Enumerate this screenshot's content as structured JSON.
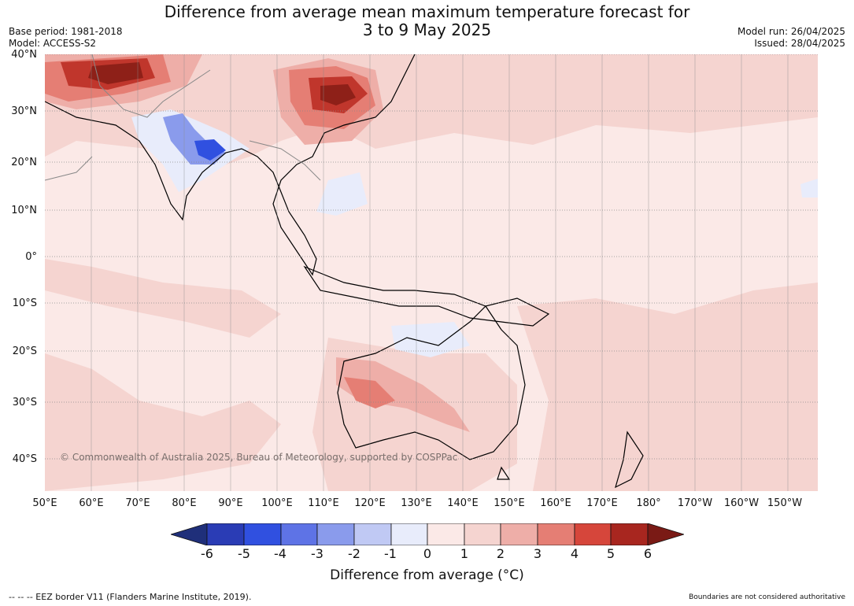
{
  "header": {
    "title_line1": "Difference from average mean maximum temperature forecast for",
    "title_line2": "3 to 9 May 2025",
    "base_period": "Base period: 1981-2018",
    "model": "Model: ACCESS-S2",
    "model_run": "Model run: 26/04/2025",
    "issued": "Issued: 28/04/2025"
  },
  "map": {
    "lat_labels": [
      "40°N",
      "30°N",
      "20°N",
      "10°N",
      "0°",
      "10°S",
      "20°S",
      "30°S",
      "40°S"
    ],
    "lon_labels": [
      "50°E",
      "60°E",
      "70°E",
      "80°E",
      "90°E",
      "100°E",
      "110°E",
      "120°E",
      "130°E",
      "140°E",
      "150°E",
      "160°E",
      "170°E",
      "180°",
      "170°W",
      "160°W",
      "150°W"
    ],
    "copyright": "© Commonwealth of Australia 2025, Bureau of Meteorology, supported by COSPPac",
    "colors": {
      "ocean_base": "#fbe9e7",
      "land_outline": "#000000",
      "gridline": "#8a8a8a"
    }
  },
  "colorbar": {
    "ticks": [
      "-6",
      "-5",
      "-4",
      "-3",
      "-2",
      "-1",
      "0",
      "1",
      "2",
      "3",
      "4",
      "5",
      "6"
    ],
    "colors": [
      "#1f2f7a",
      "#2a3cb5",
      "#3050e0",
      "#5e73e6",
      "#8a9bec",
      "#c0c9f4",
      "#e8ecfb",
      "#fbe9e7",
      "#f5d4d0",
      "#eeaea8",
      "#e57e74",
      "#d6463b",
      "#a8261f",
      "#7a1a15"
    ],
    "label": "Difference from average (°C)"
  },
  "footer": {
    "eez": "--  --  -- EEZ border V11 (Flanders Marine Institute, 2019).",
    "disclaimer": "Boundaries are not considered authoritative"
  }
}
